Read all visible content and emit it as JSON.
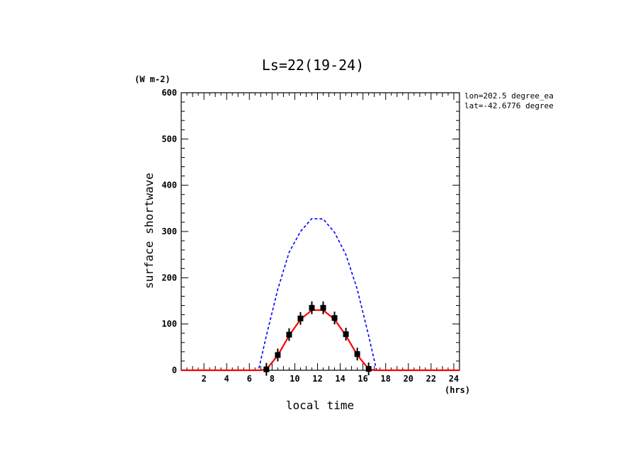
{
  "chart_data": {
    "type": "line",
    "title": "Ls=22(19-24)",
    "xlabel": "local time",
    "ylabel": "surface shortwave",
    "x_unit": "(hrs)",
    "y_unit": "(W m-2)",
    "annotations": [
      "lon=202.5 degree_ea",
      "lat=-42.6776 degree"
    ],
    "xlim": [
      0,
      24.5
    ],
    "ylim": [
      0,
      600
    ],
    "x_ticks": [
      2,
      4,
      6,
      8,
      10,
      12,
      14,
      16,
      18,
      20,
      22,
      24
    ],
    "y_ticks": [
      0,
      100,
      200,
      300,
      400,
      500,
      600
    ],
    "grid": false,
    "series": [
      {
        "style": "dashed",
        "color": "#0000ff",
        "x": [
          0,
          6,
          6.8,
          7.5,
          8.5,
          9.5,
          10.5,
          11.5,
          12.5,
          13.5,
          14.5,
          15.5,
          16.5,
          17.2,
          18,
          24.5
        ],
        "values": [
          0,
          0,
          0,
          75,
          175,
          255,
          300,
          328,
          327,
          298,
          250,
          175,
          75,
          0,
          0,
          0
        ]
      },
      {
        "style": "solid",
        "color": "#ff0000",
        "x": [
          0,
          7,
          7.5,
          8.5,
          9.5,
          10.5,
          11.5,
          12.5,
          13.5,
          14.5,
          15.5,
          16.5,
          17,
          24.5
        ],
        "values": [
          0,
          0,
          2,
          32,
          75,
          110,
          130,
          130,
          110,
          75,
          33,
          3,
          0,
          0
        ]
      },
      {
        "style": "markers",
        "color": "#000000",
        "x": [
          7.5,
          8.5,
          9.5,
          10.5,
          11.5,
          12.5,
          13.5,
          14.5,
          15.5,
          16.5
        ],
        "values": [
          2,
          33,
          77,
          112,
          135,
          135,
          113,
          78,
          35,
          3
        ]
      }
    ]
  }
}
